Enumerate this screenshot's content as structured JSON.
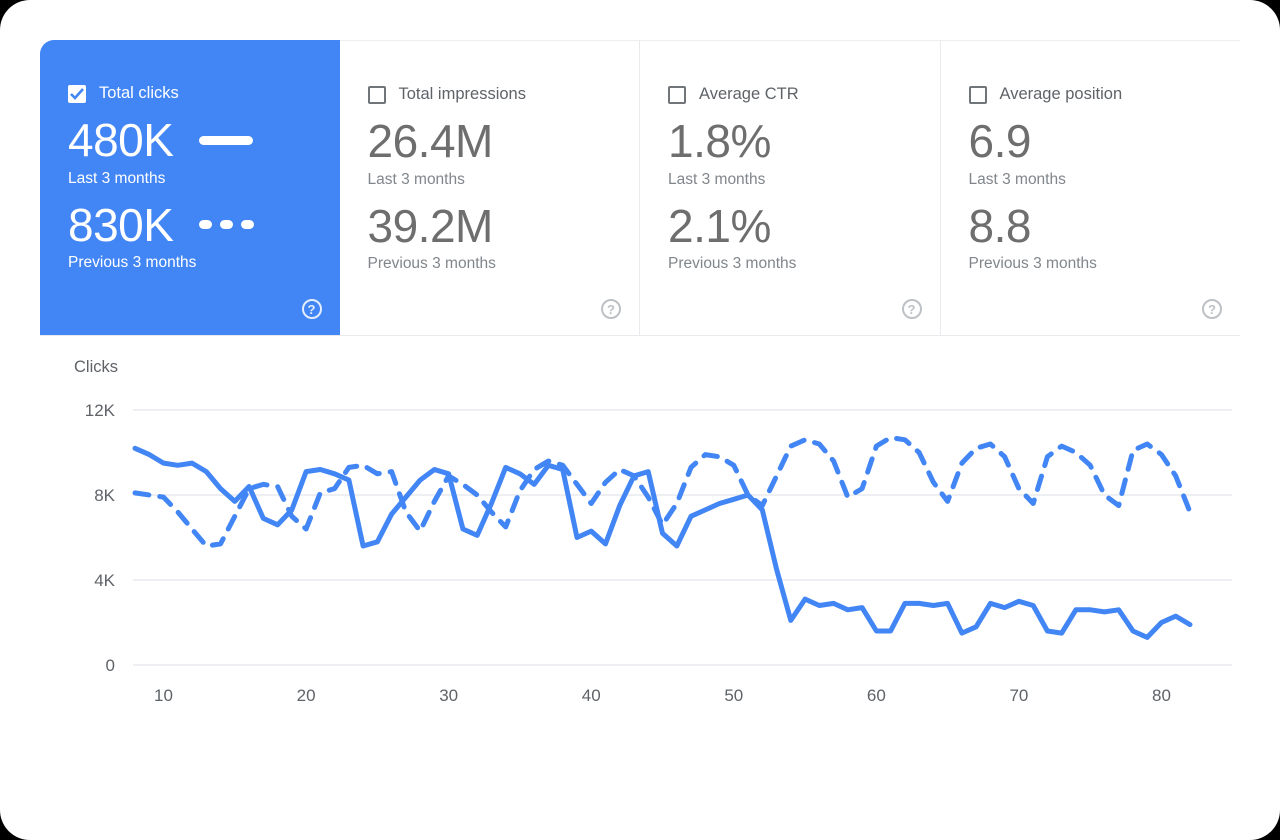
{
  "colors": {
    "accent": "#4285f4",
    "line": "#4285f4",
    "gridline": "#e8eaed",
    "axis_label": "#5f6368"
  },
  "help_icon": "?",
  "cards": [
    {
      "label": "Total clicks",
      "checked": true,
      "selected": true,
      "primary_value": "480K",
      "primary_caption": "Last 3 months",
      "secondary_value": "830K",
      "secondary_caption": "Previous 3 months",
      "legend_primary": "solid-line",
      "legend_secondary": "dashed-line"
    },
    {
      "label": "Total impressions",
      "checked": false,
      "selected": false,
      "primary_value": "26.4M",
      "primary_caption": "Last 3 months",
      "secondary_value": "39.2M",
      "secondary_caption": "Previous 3 months"
    },
    {
      "label": "Average CTR",
      "checked": false,
      "selected": false,
      "primary_value": "1.8%",
      "primary_caption": "Last 3 months",
      "secondary_value": "2.1%",
      "secondary_caption": "Previous 3 months"
    },
    {
      "label": "Average position",
      "checked": false,
      "selected": false,
      "primary_value": "6.9",
      "primary_caption": "Last 3 months",
      "secondary_value": "8.8",
      "secondary_caption": "Previous 3 months"
    }
  ],
  "chart_data": {
    "type": "line",
    "title": "Clicks",
    "xlabel": "",
    "ylabel": "Clicks",
    "xlim": [
      8,
      82
    ],
    "ylim": [
      0,
      12000
    ],
    "x_first": 8,
    "x_step": 1,
    "grid": "horizontal",
    "legend_position": "none",
    "x_ticks": [
      10,
      20,
      30,
      40,
      50,
      60,
      70,
      80
    ],
    "y_ticks": [
      {
        "value": 0,
        "label": "0"
      },
      {
        "value": 4000,
        "label": "4K"
      },
      {
        "value": 8000,
        "label": "8K"
      },
      {
        "value": 12000,
        "label": "12K"
      }
    ],
    "series": [
      {
        "name": "Last 3 months",
        "style": "solid",
        "color": "#4285f4",
        "values": [
          10200,
          9900,
          9500,
          9400,
          9500,
          9100,
          8300,
          7700,
          8400,
          6900,
          6600,
          7300,
          9100,
          9200,
          9000,
          8700,
          5600,
          5800,
          7100,
          7900,
          8700,
          9200,
          9000,
          6400,
          6100,
          7600,
          9300,
          9000,
          8500,
          9400,
          9200,
          6000,
          6300,
          5700,
          7500,
          8900,
          9100,
          6200,
          5600,
          7000,
          7300,
          7600,
          7800,
          8000,
          7300,
          4500,
          2100,
          3100,
          2800,
          2900,
          2600,
          2700,
          1600,
          1600,
          2900,
          2900,
          2800,
          2900,
          1500,
          1800,
          2900,
          2700,
          3000,
          2800,
          1600,
          1500,
          2600,
          2600,
          2500,
          2600,
          1600,
          1300,
          2000,
          2300,
          1900
        ]
      },
      {
        "name": "Previous 3 months",
        "style": "dashed",
        "color": "#4285f4",
        "values": [
          8100,
          8000,
          7900,
          7200,
          6400,
          5600,
          5700,
          7000,
          8300,
          8500,
          8400,
          7000,
          6400,
          8100,
          8300,
          9300,
          9400,
          9000,
          9100,
          7200,
          6300,
          7700,
          8900,
          8500,
          8000,
          7200,
          6500,
          8200,
          9200,
          9600,
          9400,
          8500,
          7600,
          8600,
          9200,
          8900,
          7900,
          6600,
          7600,
          9300,
          9900,
          9800,
          9400,
          8000,
          7500,
          8900,
          10300,
          10600,
          10400,
          9600,
          7900,
          8300,
          10300,
          10700,
          10600,
          10000,
          8600,
          7700,
          9500,
          10200,
          10400,
          9800,
          8300,
          7600,
          9800,
          10300,
          10000,
          9400,
          8000,
          7500,
          10100,
          10400,
          9900,
          8900,
          7200
        ]
      }
    ]
  }
}
